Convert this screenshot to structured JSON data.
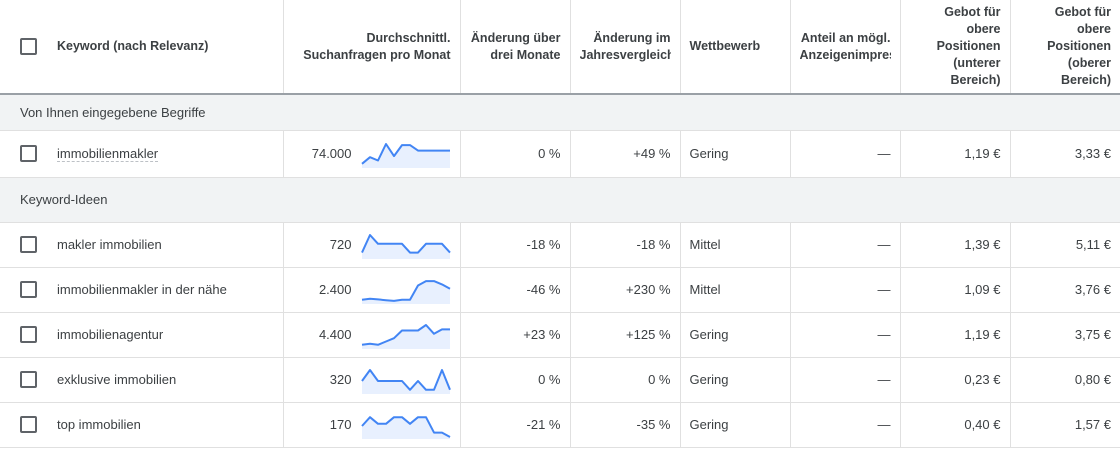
{
  "header": {
    "select_all": "",
    "keyword": "Keyword (nach Relevanz)",
    "avg_line1": "Durchschnittl.",
    "avg_line2": "Suchanfragen pro Monat",
    "three_month_line1": "Änderung über",
    "three_month_line2": "drei Monate",
    "yoy_line1": "Änderung im",
    "yoy_line2": "Jahresvergleich",
    "competition": "Wettbewerb",
    "share_line1": "Anteil an mögl.",
    "share_line2": "Anzeigenimpressionen",
    "low_bid": [
      "Gebot für",
      "obere",
      "Positionen",
      "(unterer",
      "Bereich)"
    ],
    "high_bid": [
      "Gebot für",
      "obere",
      "Positionen",
      "(oberer",
      "Bereich)"
    ]
  },
  "colors": {
    "sparkline": "#4285f4",
    "sparkline_fill": "#e8f0fe",
    "group_bg": "#f1f3f4"
  },
  "groups": [
    {
      "label": "Von Ihnen eingegebene Begriffe",
      "rows": [
        {
          "keyword": "immobilienmakler",
          "avg": "74.000",
          "three_month": "0 %",
          "yoy": "+49 %",
          "competition": "Gering",
          "share": "—",
          "low_bid": "1,19 €",
          "high_bid": "3,33 €",
          "trend": [
            0.1,
            0.4,
            0.25,
            1,
            0.45,
            0.95,
            0.95,
            0.7,
            0.7,
            0.7,
            0.7,
            0.7
          ]
        }
      ]
    },
    {
      "label": "Keyword-Ideen",
      "rows": [
        {
          "keyword": "makler immobilien",
          "avg": "720",
          "three_month": "-18 %",
          "yoy": "-18 %",
          "competition": "Mittel",
          "share": "—",
          "low_bid": "1,39 €",
          "high_bid": "5,11 €",
          "trend": [
            0.2,
            1,
            0.6,
            0.6,
            0.6,
            0.6,
            0.2,
            0.2,
            0.6,
            0.6,
            0.6,
            0.2
          ]
        },
        {
          "keyword": "immobilienmakler in der nähe",
          "avg": "2.400",
          "three_month": "-46 %",
          "yoy": "+230 %",
          "competition": "Mittel",
          "share": "—",
          "low_bid": "1,09 €",
          "high_bid": "3,76 €",
          "trend": [
            0.1,
            0.15,
            0.12,
            0.08,
            0.05,
            0.1,
            0.1,
            0.75,
            0.95,
            0.95,
            0.8,
            0.6
          ]
        },
        {
          "keyword": "immobilienagentur",
          "avg": "4.400",
          "three_month": "+23 %",
          "yoy": "+125 %",
          "competition": "Gering",
          "share": "—",
          "low_bid": "1,19 €",
          "high_bid": "3,75 €",
          "trend": [
            0.1,
            0.15,
            0.1,
            0.25,
            0.4,
            0.75,
            0.75,
            0.75,
            1,
            0.6,
            0.8,
            0.8
          ]
        },
        {
          "keyword": "exklusive immobilien",
          "avg": "320",
          "three_month": "0 %",
          "yoy": "0 %",
          "competition": "Gering",
          "share": "—",
          "low_bid": "0,23 €",
          "high_bid": "0,80 €",
          "trend": [
            0.5,
            1,
            0.5,
            0.5,
            0.5,
            0.5,
            0.1,
            0.5,
            0.1,
            0.1,
            1,
            0.1
          ]
        },
        {
          "keyword": "top immobilien",
          "avg": "170",
          "three_month": "-21 %",
          "yoy": "-35 %",
          "competition": "Gering",
          "share": "—",
          "low_bid": "0,40 €",
          "high_bid": "1,57 €",
          "trend": [
            0.5,
            0.9,
            0.6,
            0.6,
            0.9,
            0.9,
            0.6,
            0.9,
            0.9,
            0.2,
            0.2,
            0
          ]
        }
      ]
    }
  ]
}
